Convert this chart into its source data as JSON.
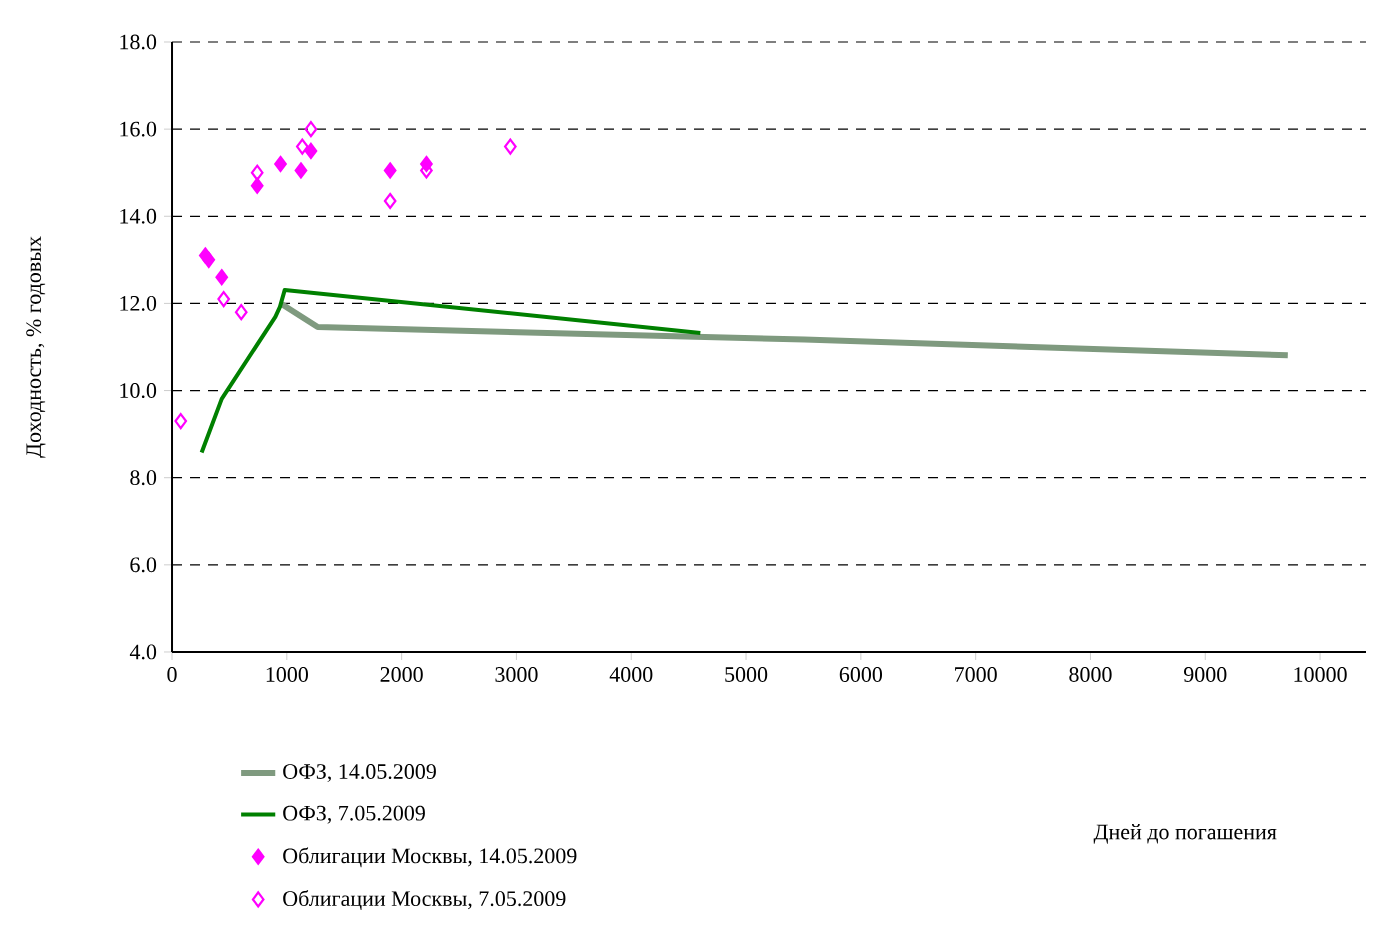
{
  "chart_data": {
    "type": "line",
    "annotations": [
      "Дней до погашения"
    ],
    "ylabel": "Доходность, % годовых",
    "xlim": [
      0,
      10400
    ],
    "xticks": [
      0,
      1000,
      2000,
      3000,
      4000,
      5000,
      6000,
      7000,
      8000,
      9000,
      10000
    ],
    "ylim": [
      4,
      18
    ],
    "yticks": [
      {
        "value": 4,
        "label": "4.0"
      },
      {
        "value": 6,
        "label": "6.0"
      },
      {
        "value": 8,
        "label": "8.0"
      },
      {
        "value": 10,
        "label": "10.0"
      },
      {
        "value": 12,
        "label": "12.0"
      },
      {
        "value": 14,
        "label": "14.0"
      },
      {
        "value": 16,
        "label": "16.0"
      },
      {
        "value": 18,
        "label": "18.0"
      }
    ],
    "grid": "y",
    "legend": "bottom",
    "series": [
      {
        "name": "ОФЗ, 14.05.2009",
        "color": "#7f9a7f",
        "x": [
          947,
          1269,
          5509,
          9719
        ],
        "values": [
          12.0,
          11.46,
          11.17,
          10.81
        ]
      },
      {
        "name": "ОФЗ, 7.05.2009",
        "color": "#008000",
        "x": [
          258,
          433,
          900,
          940,
          982,
          4602
        ],
        "values": [
          8.58,
          9.81,
          11.69,
          11.92,
          12.31,
          11.32
        ]
      },
      {
        "name": "Облигации Москвы, 14.05.2009",
        "type": "scatter",
        "marker": "diamond",
        "color": "#ff00ff",
        "x": [
          290,
          320,
          433,
          742,
          945,
          1123,
          1210,
          1900,
          2216
        ],
        "values": [
          13.1,
          13.0,
          12.6,
          14.7,
          15.2,
          15.05,
          15.5,
          15.05,
          15.2
        ]
      },
      {
        "name": "Облигации Москвы, 7.05.2009",
        "type": "scatter",
        "marker": "diamond",
        "color": "#ff00ff",
        "x": [
          76,
          450,
          603,
          742,
          1135,
          1210,
          1900,
          2216,
          2947
        ],
        "values": [
          9.3,
          12.1,
          11.8,
          15.0,
          15.6,
          16.0,
          14.35,
          15.05,
          15.6
        ]
      }
    ]
  }
}
